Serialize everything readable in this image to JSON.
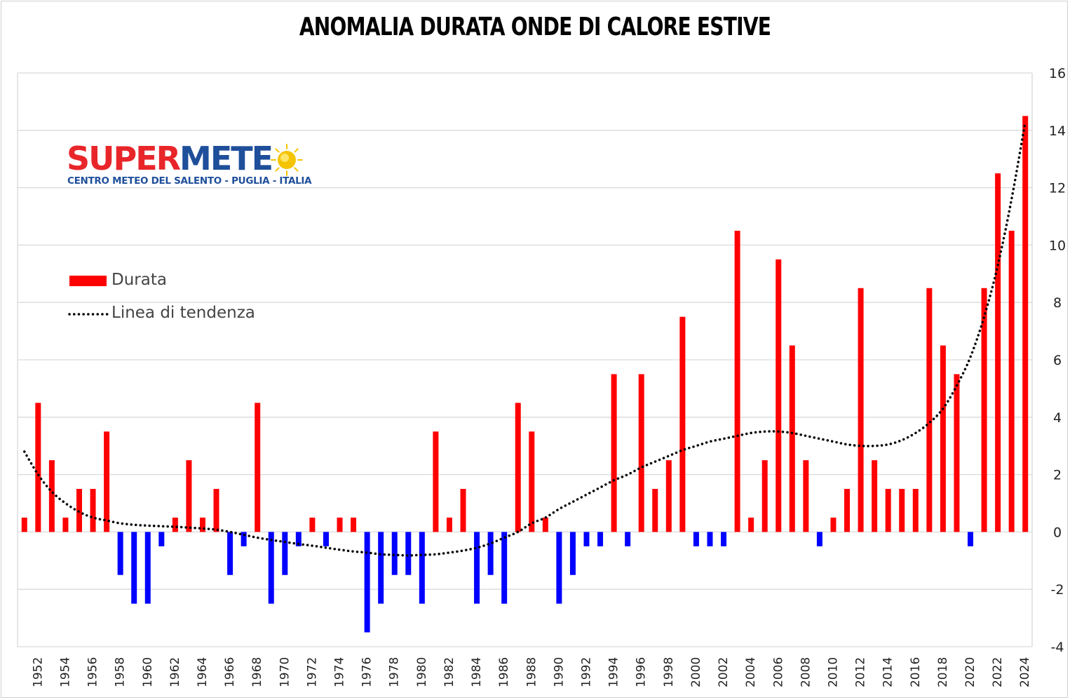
{
  "chart_data": {
    "type": "bar",
    "title": "ANOMALIA DURATA ONDE DI CALORE ESTIVE",
    "xlabel": "",
    "ylabel": "",
    "ylim": [
      -4,
      16
    ],
    "yticks": [
      -4,
      -2,
      0,
      2,
      4,
      6,
      8,
      10,
      12,
      14,
      16
    ],
    "xtick_labels": [
      "1952",
      "1954",
      "1956",
      "1958",
      "1960",
      "1962",
      "1964",
      "1966",
      "1968",
      "1970",
      "1972",
      "1974",
      "1976",
      "1978",
      "1980",
      "1982",
      "1984",
      "1986",
      "1988",
      "1990",
      "1992",
      "1994",
      "1996",
      "1998",
      "2000",
      "2002",
      "2004",
      "2006",
      "2008",
      "2010",
      "2012",
      "2014",
      "2016",
      "2018",
      "2020",
      "2022",
      "2024"
    ],
    "grid": true,
    "legend_position": "left",
    "categories": [
      1951,
      1952,
      1953,
      1954,
      1955,
      1956,
      1957,
      1958,
      1959,
      1960,
      1961,
      1962,
      1963,
      1964,
      1965,
      1966,
      1967,
      1968,
      1969,
      1970,
      1971,
      1972,
      1973,
      1974,
      1975,
      1976,
      1977,
      1978,
      1979,
      1980,
      1981,
      1982,
      1983,
      1984,
      1985,
      1986,
      1987,
      1988,
      1989,
      1990,
      1991,
      1992,
      1993,
      1994,
      1995,
      1996,
      1997,
      1998,
      1999,
      2000,
      2001,
      2002,
      2003,
      2004,
      2005,
      2006,
      2007,
      2008,
      2009,
      2010,
      2011,
      2012,
      2013,
      2014,
      2015,
      2016,
      2017,
      2018,
      2019,
      2020,
      2021,
      2022,
      2023,
      2024
    ],
    "series": [
      {
        "name": "Durata",
        "values": [
          0.5,
          4.5,
          2.5,
          0.5,
          1.5,
          1.5,
          3.5,
          -1.5,
          -2.5,
          -2.5,
          -0.5,
          0.5,
          2.5,
          0.5,
          1.5,
          -1.5,
          -0.5,
          4.5,
          -2.5,
          -1.5,
          -0.5,
          0.5,
          -0.5,
          0.5,
          0.5,
          -3.5,
          -2.5,
          -1.5,
          -1.5,
          -2.5,
          3.5,
          0.5,
          1.5,
          -2.5,
          -1.5,
          -2.5,
          4.5,
          3.5,
          0.5,
          -2.5,
          -1.5,
          -0.5,
          -0.5,
          5.5,
          -0.5,
          5.5,
          1.5,
          2.5,
          7.5,
          -0.5,
          -0.5,
          -0.5,
          10.5,
          0.5,
          2.5,
          9.5,
          6.5,
          2.5,
          -0.5,
          0.5,
          1.5,
          8.5,
          2.5,
          1.5,
          1.5,
          1.5,
          8.5,
          6.5,
          5.5,
          -0.5,
          8.5,
          12.5,
          10.5,
          14.5
        ],
        "positive_color": "#ff0000",
        "negative_color": "#0000ff"
      },
      {
        "name": "Linea di tendenza",
        "style": "dotted",
        "color": "#000000",
        "values": [
          2.8,
          2.0,
          1.4,
          1.0,
          0.7,
          0.5,
          0.4,
          0.3,
          0.25,
          0.22,
          0.2,
          0.18,
          0.15,
          0.12,
          0.08,
          0.0,
          -0.1,
          -0.2,
          -0.28,
          -0.35,
          -0.42,
          -0.48,
          -0.55,
          -0.62,
          -0.68,
          -0.72,
          -0.78,
          -0.8,
          -0.82,
          -0.8,
          -0.78,
          -0.72,
          -0.65,
          -0.55,
          -0.4,
          -0.2,
          0.0,
          0.3,
          0.5,
          0.8,
          1.05,
          1.3,
          1.55,
          1.8,
          2.0,
          2.25,
          2.45,
          2.65,
          2.85,
          3.0,
          3.15,
          3.25,
          3.35,
          3.45,
          3.5,
          3.5,
          3.45,
          3.35,
          3.25,
          3.15,
          3.05,
          3.0,
          3.0,
          3.05,
          3.2,
          3.45,
          3.8,
          4.3,
          5.1,
          6.1,
          7.5,
          9.3,
          11.6,
          14.3
        ]
      }
    ]
  },
  "logo": {
    "word_red": "SUPER",
    "word_blue": "METE",
    "subtitle": "CENTRO METEO DEL SALENTO - PUGLIA - ITALIA",
    "sun_color": "#f5c400",
    "red": "#e8262a",
    "blue": "#1f4f9a"
  },
  "legend": {
    "items": [
      {
        "label": "Durata",
        "swatch": "bar",
        "color": "#ff0000"
      },
      {
        "label": "Linea di tendenza",
        "swatch": "dotted-line",
        "color": "#000000"
      }
    ]
  }
}
